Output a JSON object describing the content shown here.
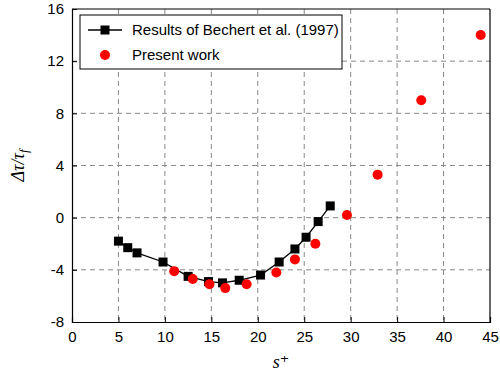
{
  "chart_data": {
    "type": "line",
    "x_label": "s⁺",
    "y_label": "Δτ/τf",
    "xlim": [
      0,
      45
    ],
    "xticks": [
      0,
      5,
      10,
      15,
      20,
      25,
      30,
      35,
      40,
      45
    ],
    "ylim": [
      -8,
      16
    ],
    "yticks": [
      -8,
      -4,
      0,
      4,
      8,
      12,
      16
    ],
    "grid": true,
    "legend": "upper-left",
    "series": [
      {
        "name": "Results of Bechert et al. (1997)",
        "type": "line",
        "color": "#000000",
        "marker": "square",
        "line_style": "solid",
        "x": [
          5,
          6,
          7,
          9.8,
          12.5,
          14.7,
          16.2,
          18,
          20.3,
          22.3,
          24,
          25.2,
          26.5,
          27.8
        ],
        "values": [
          -1.8,
          -2.3,
          -2.7,
          -3.4,
          -4.5,
          -4.9,
          -5.0,
          -4.8,
          -4.4,
          -3.4,
          -2.4,
          -1.5,
          -0.3,
          0.9
        ]
      },
      {
        "name": "Present work",
        "type": "scatter",
        "color": "#ff0000",
        "marker": "circle",
        "line_style": "none",
        "x": [
          11,
          13,
          14.8,
          16.5,
          18.8,
          22,
          24,
          26.2,
          29.6,
          32.9,
          37.6,
          44
        ],
        "values": [
          -4.1,
          -4.7,
          -5.1,
          -5.4,
          -5.1,
          -4.2,
          -3.2,
          -2.0,
          0.2,
          3.3,
          9.0,
          14.0
        ]
      }
    ]
  }
}
